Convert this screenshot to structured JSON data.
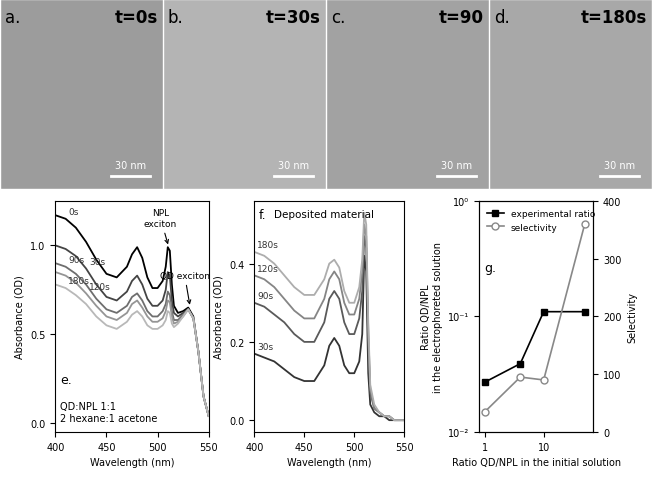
{
  "images": [
    {
      "label": "a.",
      "time": "t=0s",
      "scale_bar": "30 nm"
    },
    {
      "label": "b.",
      "time": "t=30s",
      "scale_bar": "30 nm"
    },
    {
      "label": "c.",
      "time": "t=90",
      "scale_bar": "30 nm"
    },
    {
      "label": "d.",
      "time": "t=180s",
      "scale_bar": "30 nm"
    }
  ],
  "chart_data": [
    {
      "type": "line",
      "panel": "e.",
      "x_label": "Wavelength (nm)",
      "y_label": "Absorbance (OD)",
      "notes": [
        "QD:NPL 1:1",
        "2 hexane:1 acetone"
      ],
      "annotations": [
        {
          "text": "NPL\nexciton",
          "x": 511,
          "y": 0.99
        },
        {
          "text": "QD exciton",
          "x": 532,
          "y": 0.65
        }
      ],
      "x": [
        400,
        410,
        420,
        430,
        440,
        450,
        460,
        470,
        475,
        480,
        485,
        490,
        495,
        500,
        505,
        508,
        510,
        512,
        514,
        516,
        520,
        525,
        530,
        535,
        540,
        545,
        550
      ],
      "xlim": [
        400,
        550
      ],
      "xticks": [
        400,
        450,
        500,
        550
      ],
      "ylim": [
        -0.05,
        1.25
      ],
      "yticks": [
        {
          "value": 0.0,
          "label": "0.0"
        },
        {
          "value": 0.5,
          "label": "0.5"
        },
        {
          "value": 1.0,
          "label": "1.0"
        }
      ],
      "grid": false,
      "series": [
        {
          "name": "0s",
          "color": "#000000",
          "line_style": "solid",
          "values": [
            1.17,
            1.15,
            1.1,
            1.02,
            0.92,
            0.84,
            0.82,
            0.88,
            0.95,
            0.99,
            0.93,
            0.82,
            0.76,
            0.76,
            0.8,
            0.88,
            0.99,
            0.97,
            0.78,
            0.66,
            0.62,
            0.63,
            0.65,
            0.6,
            0.4,
            0.15,
            0.04
          ]
        },
        {
          "name": "30s",
          "color": "#444444",
          "line_style": "solid",
          "values": [
            1.0,
            0.98,
            0.94,
            0.87,
            0.78,
            0.71,
            0.69,
            0.74,
            0.8,
            0.83,
            0.78,
            0.7,
            0.66,
            0.66,
            0.69,
            0.75,
            0.85,
            0.83,
            0.69,
            0.62,
            0.6,
            0.62,
            0.64,
            0.59,
            0.4,
            0.15,
            0.04
          ]
        },
        {
          "name": "90s",
          "color": "#6e6e6e",
          "line_style": "solid",
          "values": [
            0.9,
            0.88,
            0.84,
            0.78,
            0.7,
            0.64,
            0.62,
            0.66,
            0.71,
            0.73,
            0.69,
            0.63,
            0.6,
            0.6,
            0.63,
            0.67,
            0.74,
            0.72,
            0.63,
            0.58,
            0.58,
            0.61,
            0.64,
            0.59,
            0.4,
            0.15,
            0.04
          ]
        },
        {
          "name": "120s",
          "color": "#959595",
          "line_style": "solid",
          "values": [
            0.85,
            0.83,
            0.79,
            0.73,
            0.66,
            0.6,
            0.58,
            0.62,
            0.67,
            0.69,
            0.65,
            0.6,
            0.57,
            0.57,
            0.59,
            0.63,
            0.69,
            0.68,
            0.6,
            0.56,
            0.57,
            0.6,
            0.64,
            0.59,
            0.4,
            0.15,
            0.04
          ]
        },
        {
          "name": "180s",
          "color": "#b8b8b8",
          "line_style": "solid",
          "values": [
            0.78,
            0.76,
            0.72,
            0.67,
            0.6,
            0.55,
            0.53,
            0.57,
            0.61,
            0.63,
            0.6,
            0.55,
            0.53,
            0.53,
            0.55,
            0.58,
            0.63,
            0.62,
            0.56,
            0.54,
            0.56,
            0.6,
            0.64,
            0.59,
            0.4,
            0.15,
            0.04
          ]
        }
      ]
    },
    {
      "type": "line",
      "panel": "f.",
      "title": "Deposited material",
      "x_label": "Wavelength (nm)",
      "y_label": "Absorbance (OD)",
      "x": [
        400,
        410,
        420,
        430,
        440,
        450,
        460,
        470,
        475,
        480,
        485,
        490,
        495,
        500,
        505,
        508,
        510,
        512,
        514,
        516,
        520,
        525,
        530,
        535,
        540,
        545,
        550
      ],
      "xlim": [
        400,
        550
      ],
      "xticks": [
        400,
        450,
        500,
        550
      ],
      "ylim": [
        -0.03,
        0.56
      ],
      "yticks": [
        {
          "value": 0.0,
          "label": "0.0"
        },
        {
          "value": 0.2,
          "label": "0.2"
        },
        {
          "value": 0.4,
          "label": "0.4"
        }
      ],
      "grid": false,
      "series": [
        {
          "name": "30s",
          "color": "#333333",
          "line_style": "solid",
          "values": [
            0.17,
            0.16,
            0.15,
            0.13,
            0.11,
            0.1,
            0.1,
            0.14,
            0.19,
            0.21,
            0.19,
            0.14,
            0.12,
            0.12,
            0.15,
            0.22,
            0.42,
            0.38,
            0.12,
            0.04,
            0.02,
            0.01,
            0.01,
            0.0,
            0.0,
            0.0,
            0.0
          ]
        },
        {
          "name": "90s",
          "color": "#5a5a5a",
          "line_style": "solid",
          "values": [
            0.3,
            0.29,
            0.27,
            0.25,
            0.22,
            0.2,
            0.2,
            0.25,
            0.31,
            0.33,
            0.31,
            0.25,
            0.22,
            0.22,
            0.26,
            0.33,
            0.47,
            0.44,
            0.2,
            0.07,
            0.03,
            0.02,
            0.01,
            0.01,
            0.0,
            0.0,
            0.0
          ]
        },
        {
          "name": "120s",
          "color": "#858585",
          "line_style": "solid",
          "values": [
            0.37,
            0.36,
            0.34,
            0.31,
            0.28,
            0.26,
            0.26,
            0.31,
            0.36,
            0.38,
            0.36,
            0.3,
            0.27,
            0.27,
            0.31,
            0.38,
            0.5,
            0.47,
            0.23,
            0.08,
            0.03,
            0.02,
            0.01,
            0.01,
            0.0,
            0.0,
            0.0
          ]
        },
        {
          "name": "180s",
          "color": "#adadad",
          "line_style": "solid",
          "values": [
            0.43,
            0.42,
            0.4,
            0.37,
            0.34,
            0.32,
            0.32,
            0.36,
            0.4,
            0.41,
            0.39,
            0.33,
            0.3,
            0.3,
            0.34,
            0.41,
            0.53,
            0.5,
            0.25,
            0.09,
            0.04,
            0.02,
            0.01,
            0.01,
            0.0,
            0.0,
            0.0
          ]
        }
      ]
    },
    {
      "type": "line",
      "panel": "g.",
      "log": true,
      "legend": "upper left",
      "grid": false,
      "x_label": "Ratio QD/NPL in the initial solution",
      "y_label": "Ratio QD/NPL\nin the electrophoreted solution",
      "y2_label": "Selectivity",
      "x": [
        1,
        4,
        10,
        50
      ],
      "xlim": [
        0.8,
        70
      ],
      "xticks": [
        1,
        10
      ],
      "ylim": [
        0.01,
        1
      ],
      "yticks": [
        {
          "value": 0.01,
          "label": "10⁻²"
        },
        {
          "value": 0.1,
          "label": "10⁻¹"
        },
        {
          "value": 1,
          "label": "10⁰"
        }
      ],
      "y2lim": [
        0,
        400
      ],
      "y2ticks": [
        0,
        100,
        200,
        300,
        400
      ],
      "series": [
        {
          "name": "experimental ratio",
          "color": "#000000",
          "marker": "square",
          "line_style": "solid",
          "values": [
            0.027,
            0.039,
            0.11,
            0.11
          ]
        },
        {
          "name": "selectivity",
          "color": "#888888",
          "marker": "circle",
          "line_style": "solid",
          "axis": "y2",
          "values": [
            35,
            95,
            90,
            360
          ]
        }
      ]
    }
  ]
}
